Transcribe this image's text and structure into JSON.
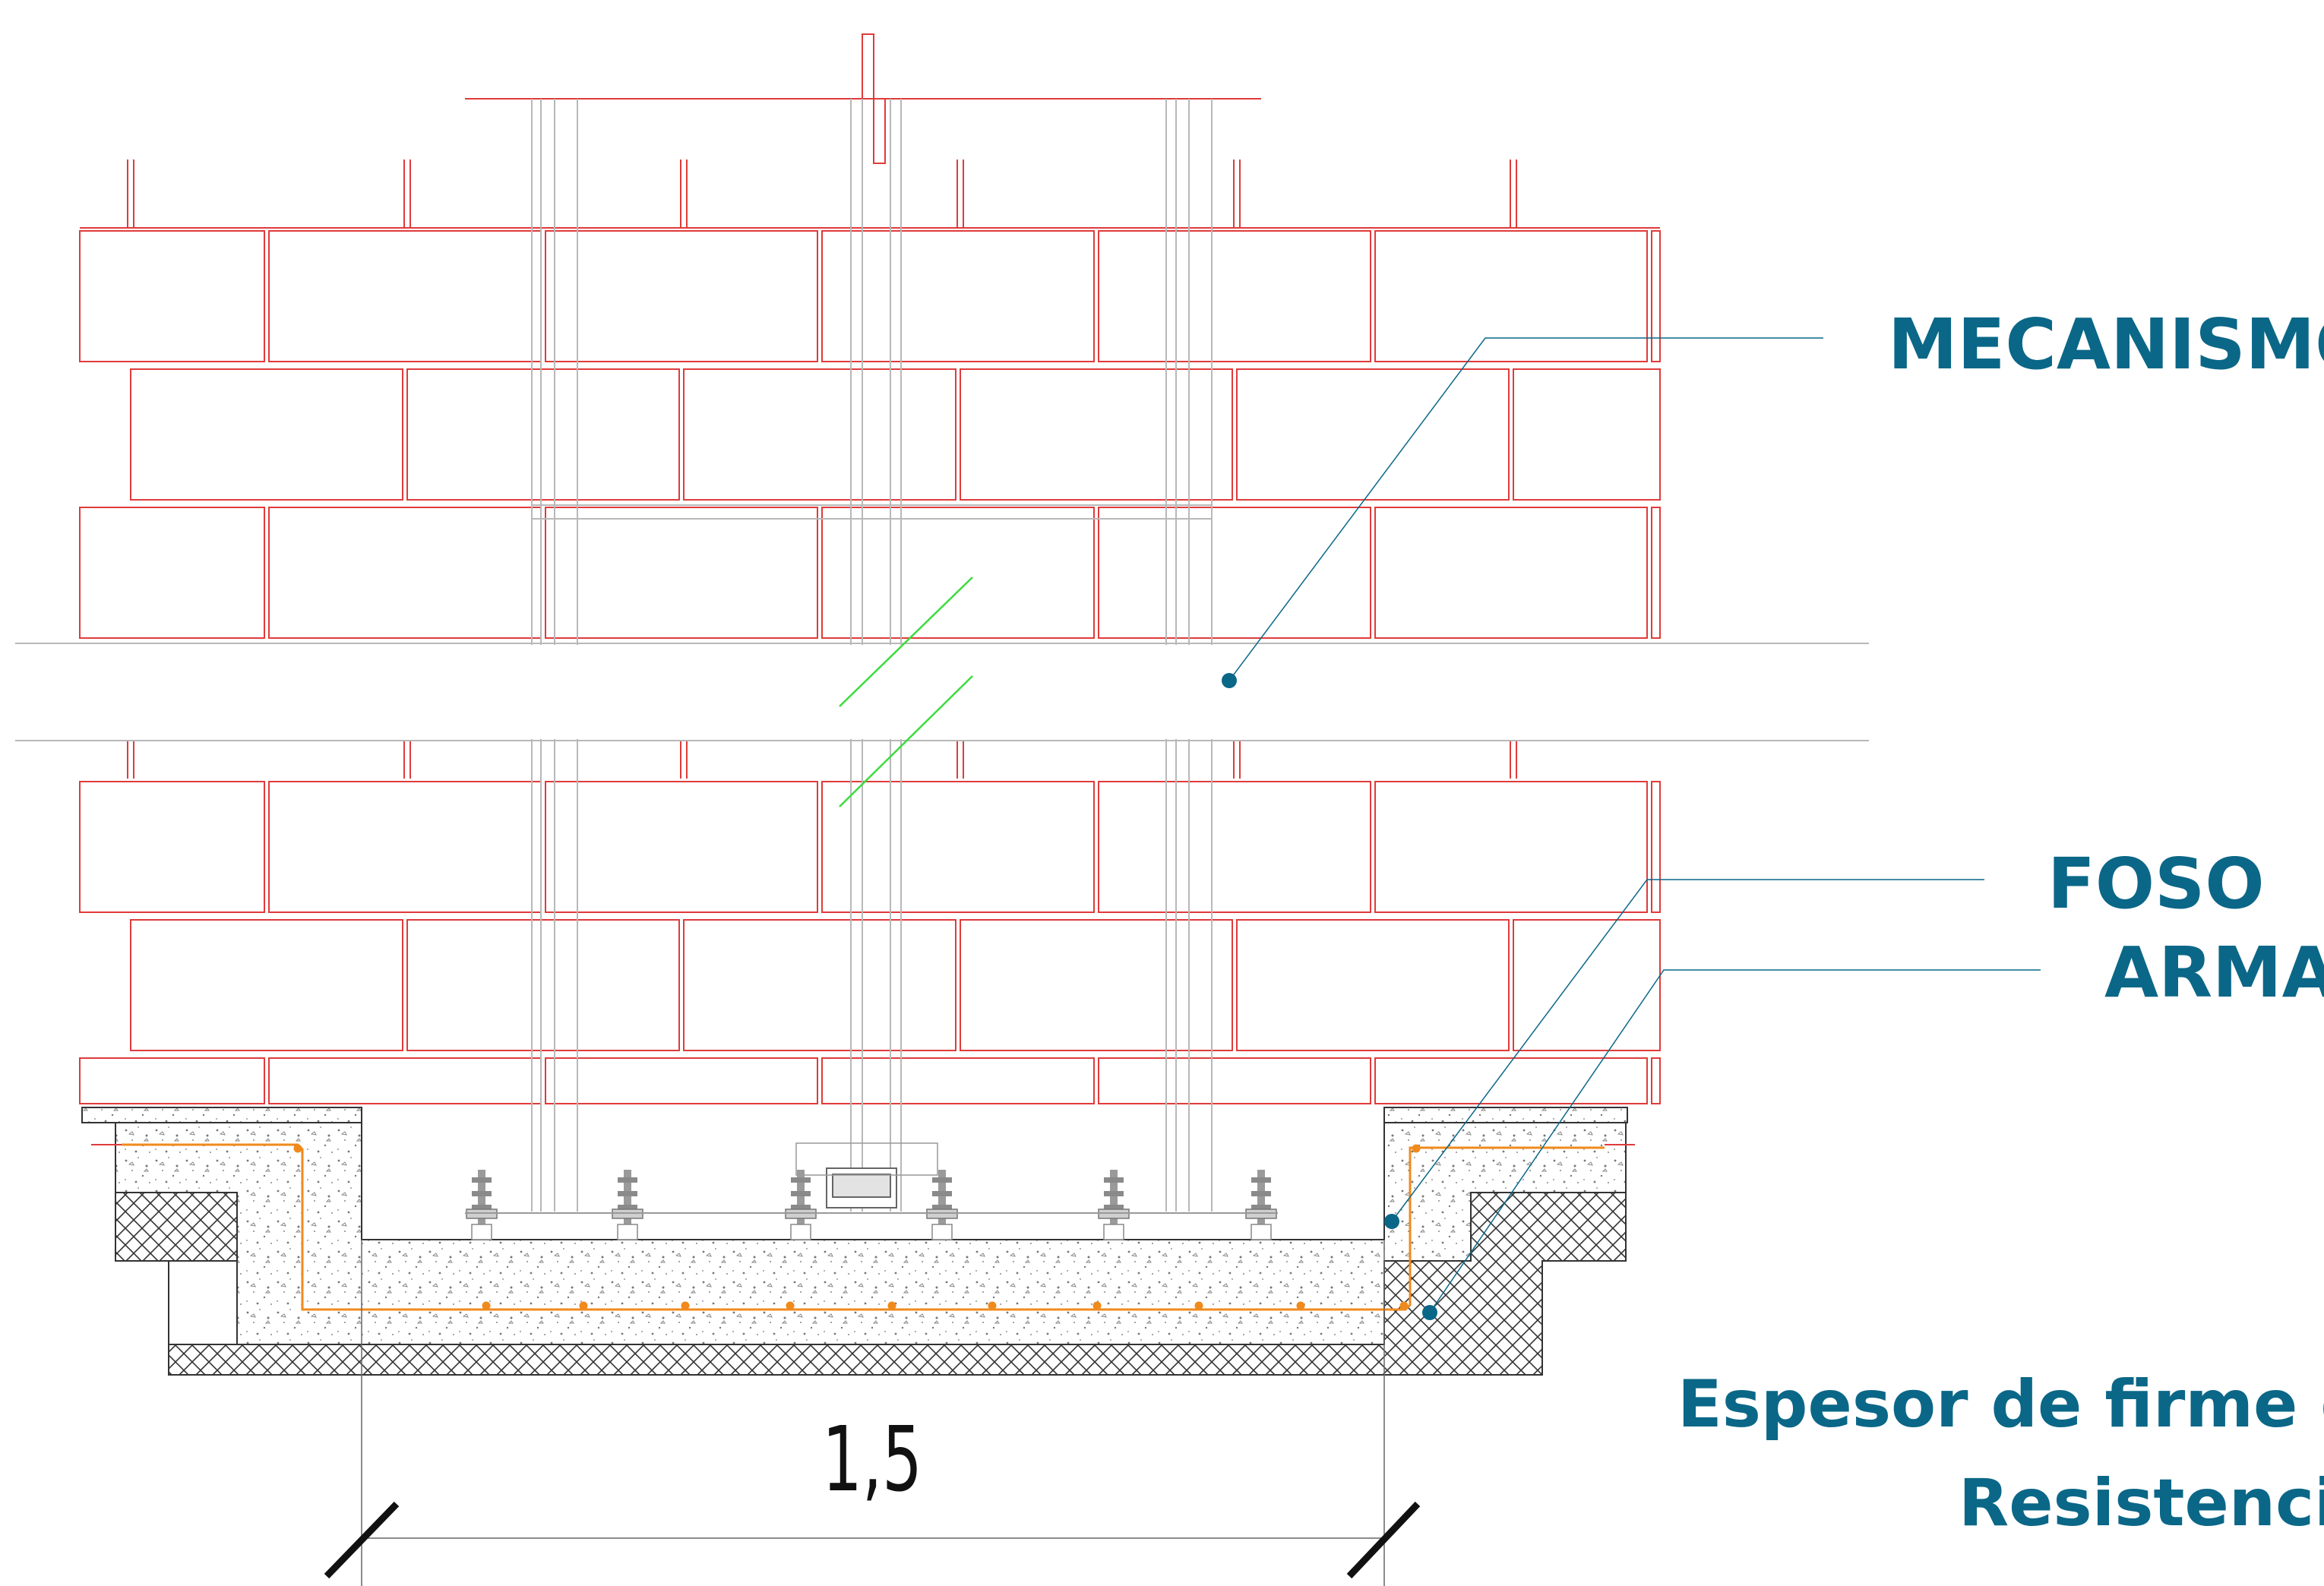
{
  "labels": {
    "mecanismo": "MECANISMO",
    "foso": "FOSO",
    "armado": "ARMAD",
    "espesor": "Espesor de firme d",
    "resistencia": "Resistencia"
  },
  "dimension": {
    "value": "1,5"
  },
  "colors": {
    "brick": "#e03b3b",
    "leader": "#0b6787",
    "rebar": "#f08a1c",
    "break": "#3ddc3d",
    "guide": "#b8b8b8",
    "concrete": "#d9d9d9",
    "dimension": "#111111"
  }
}
